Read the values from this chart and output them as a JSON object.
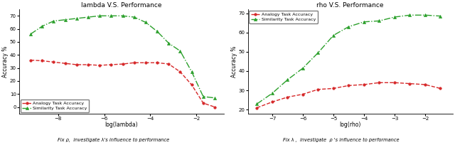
{
  "left": {
    "title": "lambda V.S. Performance",
    "xlabel": "log(lambda)",
    "ylabel": "Accuracy %",
    "xlabel2": "Fix ρ,  investigate λ's influence to performance",
    "xlim": [
      -9.7,
      -0.8
    ],
    "ylim": [
      -5,
      75
    ],
    "yticks": [
      0,
      10,
      20,
      30,
      40,
      50,
      60,
      70
    ],
    "xticks": [
      -8,
      -6,
      -4,
      -2
    ],
    "analogy_x": [
      -9.2,
      -8.7,
      -8.2,
      -7.7,
      -7.2,
      -6.7,
      -6.2,
      -5.7,
      -5.2,
      -4.7,
      -4.2,
      -3.7,
      -3.2,
      -2.7,
      -2.2,
      -1.7,
      -1.2
    ],
    "analogy_y": [
      36,
      35.5,
      34.5,
      33.5,
      32.5,
      32.5,
      32,
      32.5,
      33,
      34,
      34,
      34,
      33,
      27,
      17,
      3,
      0
    ],
    "similarity_x": [
      -9.2,
      -8.7,
      -8.2,
      -7.7,
      -7.2,
      -6.7,
      -6.2,
      -5.7,
      -5.2,
      -4.7,
      -4.2,
      -3.7,
      -3.2,
      -2.7,
      -2.2,
      -1.7,
      -1.2
    ],
    "similarity_y": [
      56,
      62,
      66,
      67,
      68,
      69,
      70,
      70,
      70,
      69,
      65,
      58,
      49,
      43,
      27,
      8,
      7
    ]
  },
  "right": {
    "title": "rho V.S. Performance",
    "xlabel": "log(rho)",
    "ylabel": "Accuracy %",
    "xlabel2": "Fix λ ,  investigate  ρ 's influence to performance",
    "xlim": [
      -7.8,
      -1.1
    ],
    "ylim": [
      18,
      72
    ],
    "yticks": [
      20,
      30,
      40,
      50,
      60,
      70
    ],
    "xticks": [
      -7,
      -6,
      -5,
      -4,
      -3,
      -2
    ],
    "analogy_x": [
      -7.5,
      -7.0,
      -6.5,
      -6.0,
      -5.5,
      -5.0,
      -4.5,
      -4.0,
      -3.5,
      -3.0,
      -2.5,
      -2.0,
      -1.5
    ],
    "analogy_y": [
      21,
      24,
      26.5,
      28,
      30.5,
      31,
      32.5,
      33,
      34,
      34,
      33.5,
      33,
      31
    ],
    "similarity_x": [
      -7.5,
      -7.0,
      -6.5,
      -6.0,
      -5.5,
      -5.0,
      -4.5,
      -4.0,
      -3.5,
      -3.0,
      -2.5,
      -2.0,
      -1.5
    ],
    "similarity_y": [
      23,
      28.5,
      35.5,
      41.5,
      49.5,
      58.5,
      63,
      65.5,
      66,
      68,
      69,
      69,
      68.5
    ]
  },
  "red_color": "#d62728",
  "green_color": "#2ca02c",
  "legend_analogy": "Analogy Task Accuracy",
  "legend_similarity": "Similarity Task Accuracy"
}
